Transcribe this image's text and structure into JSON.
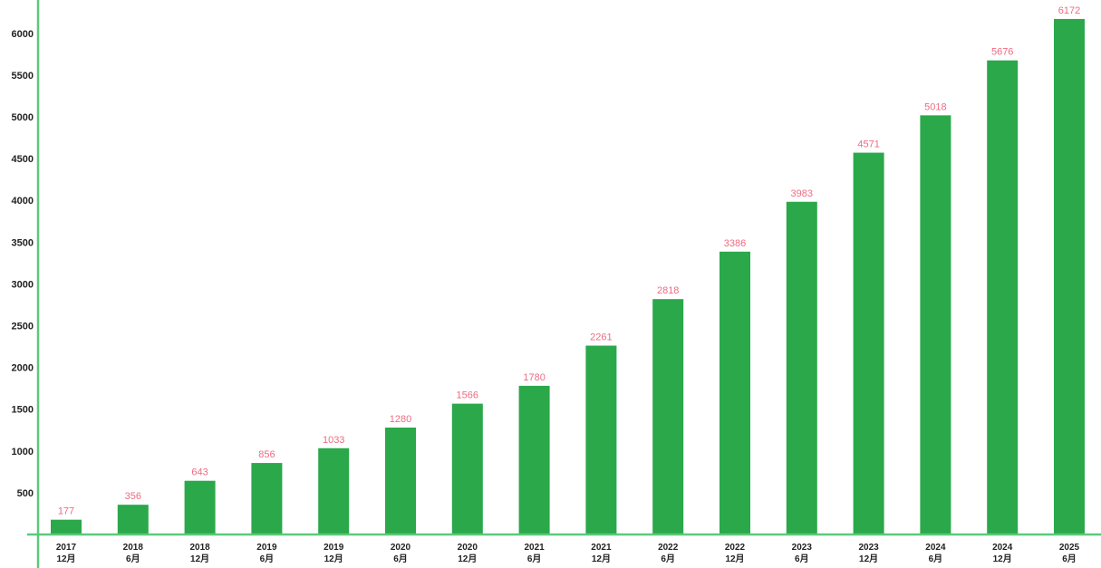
{
  "chart_data": {
    "type": "bar",
    "title": "",
    "xlabel": "",
    "ylabel": "",
    "ylim": [
      0,
      6300
    ],
    "yticks": [
      500,
      1000,
      1500,
      2000,
      2500,
      3000,
      3500,
      4000,
      4500,
      5000,
      5500,
      6000
    ],
    "grid": false,
    "legend": "none",
    "categories": [
      [
        "2017",
        "12月"
      ],
      [
        "2018",
        "6月"
      ],
      [
        "2018",
        "12月"
      ],
      [
        "2019",
        "6月"
      ],
      [
        "2019",
        "12月"
      ],
      [
        "2020",
        "6月"
      ],
      [
        "2020",
        "12月"
      ],
      [
        "2021",
        "6月"
      ],
      [
        "2021",
        "12月"
      ],
      [
        "2022",
        "6月"
      ],
      [
        "2022",
        "12月"
      ],
      [
        "2023",
        "6月"
      ],
      [
        "2023",
        "12月"
      ],
      [
        "2024",
        "6月"
      ],
      [
        "2024",
        "12月"
      ],
      [
        "2025",
        "6月"
      ]
    ],
    "values": [
      177,
      356,
      643,
      856,
      1033,
      1280,
      1566,
      1780,
      2261,
      2818,
      3386,
      3983,
      4571,
      5018,
      5676,
      6172
    ],
    "colors": {
      "bar": "#2aa84a",
      "axis": "#5cc97a",
      "data_label": "#ee6b82",
      "tick_label": "#222222"
    }
  }
}
